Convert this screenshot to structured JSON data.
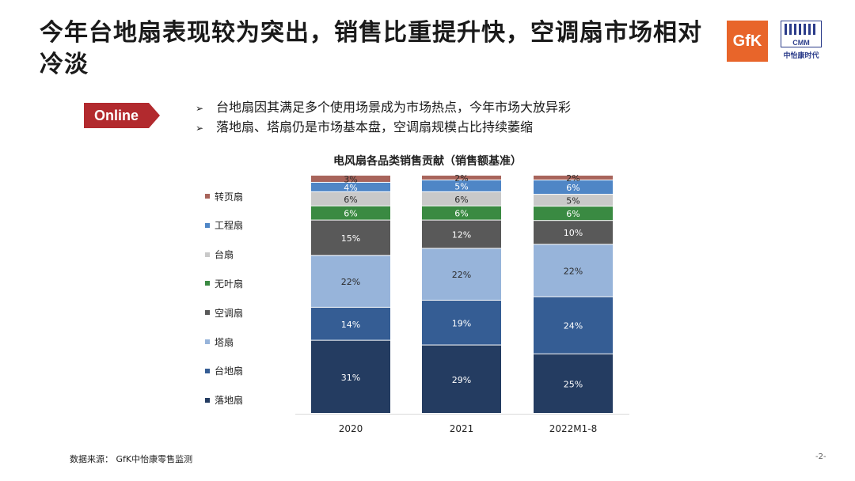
{
  "header": {
    "title": "今年台地扇表现较为突出，销售比重提升快，空调扇市场相对冷淡",
    "logo_gfk": "GfK",
    "logo_cmm_abbr": "CMM",
    "logo_cmm_name": "中怡康时代"
  },
  "badge": {
    "label": "Online",
    "color": "#b22a2e"
  },
  "bullets": [
    "台地扇因其满足多个使用场景成为市场热点，今年市场大放异彩",
    "落地扇、塔扇仍是市场基本盘，空调扇规模占比持续萎缩"
  ],
  "chart_data": {
    "type": "bar",
    "stacked": true,
    "title": "电风扇各品类销售贡献（销售额基准）",
    "categories": [
      "2020",
      "2021",
      "2022M1-8"
    ],
    "series": [
      {
        "name": "落地扇",
        "values": [
          31,
          29,
          25
        ],
        "color": "#243c61"
      },
      {
        "name": "台地扇",
        "values": [
          14,
          19,
          24
        ],
        "color": "#355d94"
      },
      {
        "name": "塔扇",
        "values": [
          22,
          22,
          22
        ],
        "color": "#97b4da"
      },
      {
        "name": "空调扇",
        "values": [
          15,
          12,
          10
        ],
        "color": "#595959"
      },
      {
        "name": "无叶扇",
        "values": [
          6,
          6,
          6
        ],
        "color": "#3a8a42"
      },
      {
        "name": "台扇",
        "values": [
          6,
          6,
          5
        ],
        "color": "#c9c9c9"
      },
      {
        "name": "工程扇",
        "values": [
          4,
          5,
          6
        ],
        "color": "#4f86c6"
      },
      {
        "name": "转页扇",
        "values": [
          3,
          2,
          2
        ],
        "color": "#a8645b"
      }
    ],
    "labels": [
      [
        "31%",
        "14%",
        "22%",
        "15%",
        "6%",
        "6%",
        "4%",
        "3%"
      ],
      [
        "29%",
        "19%",
        "22%",
        "12%",
        "6%",
        "6%",
        "5%",
        "2%"
      ],
      [
        "25%",
        "24%",
        "22%",
        "10%",
        "6%",
        "5%",
        "6%",
        "2%"
      ]
    ],
    "ylim": [
      0,
      100
    ],
    "legend_position": "left"
  },
  "footer": {
    "source": "数据来源： GfK中怡康零售监测",
    "page": "-2-"
  }
}
